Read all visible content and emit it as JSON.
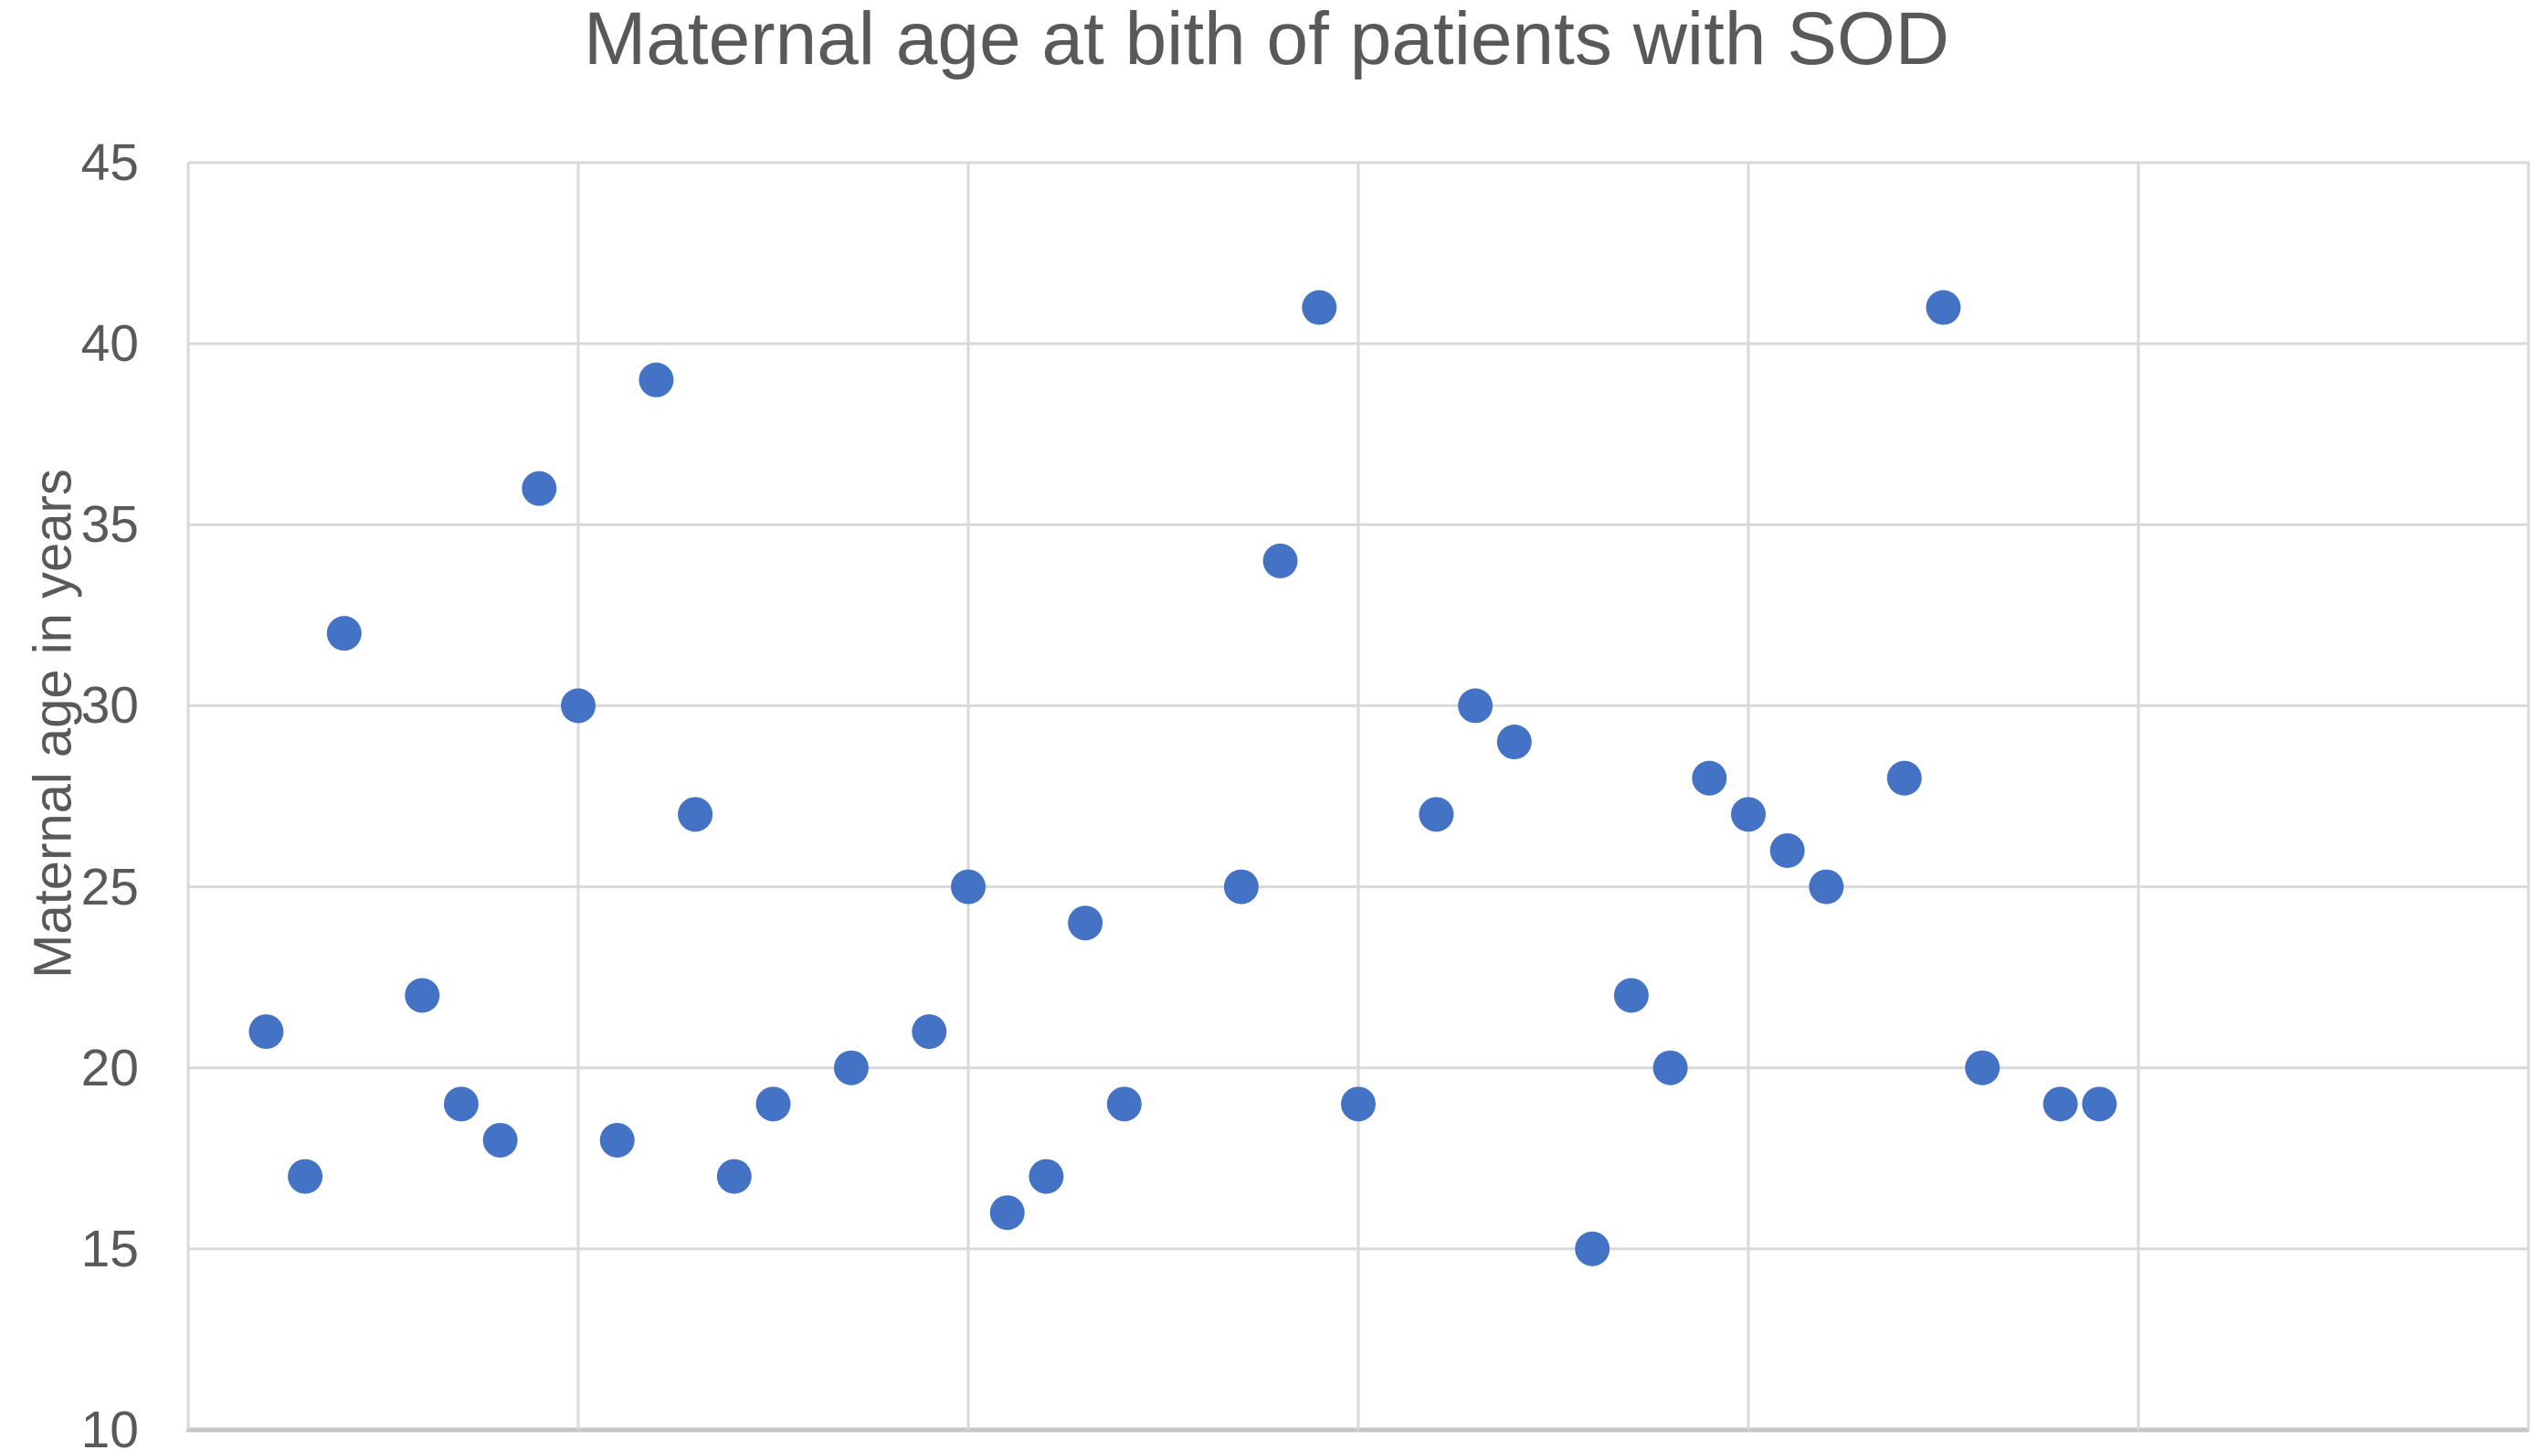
{
  "chart_data": {
    "type": "scatter",
    "title": "Maternal age at bith of patients with SOD",
    "xlabel": "",
    "ylabel": "Maternal age in years",
    "x_axis": {
      "min": 0,
      "max": 60,
      "gridline_step": 10,
      "tick_labels_visible": false
    },
    "y_axis": {
      "min": 10,
      "max": 45,
      "tick_step": 5,
      "ticks": [
        45,
        40,
        35,
        30,
        25,
        20,
        15,
        10
      ]
    },
    "grid": "on",
    "legend": "none",
    "colors": {
      "marker": "#4472C4",
      "gridline": "#D9D9D9",
      "axis_line": "#C6C6C6",
      "text": "#595959",
      "background": "#FFFFFF"
    },
    "points": [
      {
        "x": 2,
        "y": 21
      },
      {
        "x": 3,
        "y": 17
      },
      {
        "x": 4,
        "y": 32
      },
      {
        "x": 6,
        "y": 22
      },
      {
        "x": 7,
        "y": 19
      },
      {
        "x": 8,
        "y": 18
      },
      {
        "x": 9,
        "y": 36
      },
      {
        "x": 10,
        "y": 30
      },
      {
        "x": 11,
        "y": 18
      },
      {
        "x": 12,
        "y": 39
      },
      {
        "x": 13,
        "y": 27
      },
      {
        "x": 14,
        "y": 17
      },
      {
        "x": 15,
        "y": 19
      },
      {
        "x": 17,
        "y": 20
      },
      {
        "x": 19,
        "y": 21
      },
      {
        "x": 20,
        "y": 25
      },
      {
        "x": 21,
        "y": 16
      },
      {
        "x": 22,
        "y": 17
      },
      {
        "x": 23,
        "y": 24
      },
      {
        "x": 24,
        "y": 19
      },
      {
        "x": 27,
        "y": 25
      },
      {
        "x": 28,
        "y": 34
      },
      {
        "x": 29,
        "y": 41
      },
      {
        "x": 30,
        "y": 19
      },
      {
        "x": 32,
        "y": 27
      },
      {
        "x": 33,
        "y": 30
      },
      {
        "x": 34,
        "y": 29
      },
      {
        "x": 36,
        "y": 15
      },
      {
        "x": 37,
        "y": 22
      },
      {
        "x": 38,
        "y": 20
      },
      {
        "x": 39,
        "y": 28
      },
      {
        "x": 40,
        "y": 27
      },
      {
        "x": 41,
        "y": 26
      },
      {
        "x": 42,
        "y": 25
      },
      {
        "x": 44,
        "y": 28
      },
      {
        "x": 45,
        "y": 41
      },
      {
        "x": 46,
        "y": 20
      },
      {
        "x": 48,
        "y": 19
      },
      {
        "x": 49,
        "y": 19
      }
    ]
  }
}
